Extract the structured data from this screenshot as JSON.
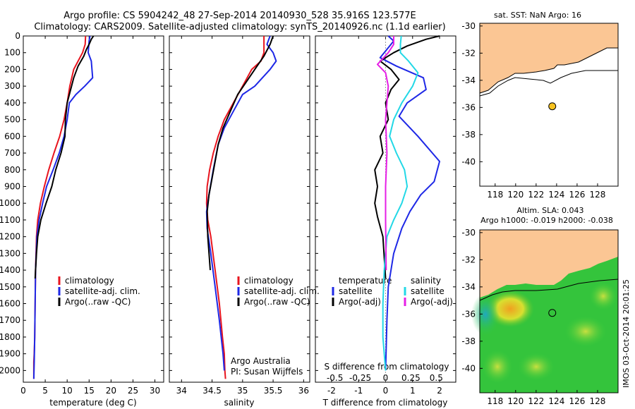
{
  "header": {
    "line1": "Argo profile: CS 5904242_48 27-Sep-2014 20140930_528 35.916S 123.577E",
    "line2": "Climatology: CARS2009. Satellite-adjusted climatology: synTS_20140926.nc (1.1d earlier)"
  },
  "colors": {
    "climatology": "#e8141e",
    "satellite": "#1e28e6",
    "argo": "#000000",
    "sat_salinity": "#22d8e6",
    "argo_salinity": "#e61ee6",
    "land": "#fbc694"
  },
  "chart_data": [
    {
      "id": "temperature",
      "type": "line",
      "xlabel": "temperature (deg C)",
      "ylabel": "",
      "xlim": [
        0,
        32
      ],
      "ylim": [
        2070,
        0
      ],
      "xticks": [
        0,
        5,
        10,
        15,
        20,
        25,
        30
      ],
      "yticks": [
        0,
        100,
        200,
        300,
        400,
        500,
        600,
        700,
        800,
        900,
        1000,
        1100,
        1200,
        1300,
        1400,
        1500,
        1600,
        1700,
        1800,
        1900,
        2000
      ],
      "legend": [
        "climatology",
        "satellite-adj. clim.",
        "Argo(..raw -QC)"
      ],
      "series": [
        {
          "name": "climatology",
          "color_key": "climatology",
          "x": [
            14.2,
            14.1,
            13.5,
            12.5,
            11.5,
            10.6,
            10.0,
            9.3,
            8.3,
            7.0,
            5.8,
            4.8,
            3.9,
            3.3,
            3.0,
            2.8,
            2.7,
            2.6,
            2.5,
            2.4,
            2.4,
            2.4
          ],
          "y": [
            0,
            50,
            100,
            150,
            200,
            300,
            400,
            500,
            600,
            700,
            800,
            900,
            1000,
            1100,
            1200,
            1400,
            1600,
            1800,
            1900,
            1950,
            2000,
            2050
          ]
        },
        {
          "name": "satellite-adj. clim.",
          "color_key": "satellite",
          "x": [
            15.2,
            15.0,
            14.8,
            15.5,
            15.8,
            14.0,
            12.0,
            10.5,
            10.0,
            9.3,
            8.2,
            6.8,
            5.3,
            4.4,
            3.6,
            3.1,
            2.8,
            2.7,
            2.6,
            2.5,
            2.4
          ],
          "y": [
            0,
            30,
            100,
            150,
            250,
            300,
            350,
            400,
            500,
            600,
            700,
            800,
            900,
            1000,
            1100,
            1200,
            1400,
            1600,
            1800,
            1950,
            2050
          ]
        },
        {
          "name": "Argo(..raw -QC)",
          "color_key": "argo",
          "x": [
            16.0,
            15.5,
            15.0,
            14.4,
            13.8,
            12.5,
            11.5,
            11.0,
            10.5,
            10.0,
            9.6,
            9.5,
            8.6,
            7.4,
            6.5,
            5.2,
            4.0,
            3.3,
            3.0,
            2.8,
            2.7
          ],
          "y": [
            0,
            20,
            50,
            80,
            120,
            180,
            250,
            300,
            350,
            400,
            500,
            600,
            700,
            800,
            900,
            1000,
            1100,
            1200,
            1300,
            1400,
            1450
          ]
        }
      ]
    },
    {
      "id": "salinity",
      "type": "line",
      "xlabel": "salinity",
      "ylabel": "",
      "xlim": [
        33.8,
        36.1
      ],
      "ylim": [
        2070,
        0
      ],
      "xticks": [
        34,
        34.5,
        35,
        35.5,
        36
      ],
      "legend": [
        "climatology",
        "satellite-adj. clim.",
        "Argo(..raw -QC)"
      ],
      "annotations": [
        "Argo Australia",
        "PI: Susan Wijffels"
      ],
      "series": [
        {
          "name": "climatology",
          "color_key": "climatology",
          "x": [
            35.35,
            35.35,
            35.3,
            35.15,
            35.0,
            34.85,
            34.7,
            34.6,
            34.52,
            34.46,
            34.42,
            34.41,
            34.43,
            34.48,
            34.55,
            34.62,
            34.67,
            34.7,
            34.71,
            34.72
          ],
          "y": [
            0,
            100,
            150,
            200,
            300,
            400,
            500,
            600,
            700,
            800,
            900,
            1000,
            1100,
            1200,
            1400,
            1600,
            1800,
            1900,
            2000,
            2050
          ]
        },
        {
          "name": "satellite-adj. clim.",
          "color_key": "satellite",
          "x": [
            35.45,
            35.4,
            35.5,
            35.55,
            35.45,
            35.2,
            35.0,
            34.85,
            34.7,
            34.6,
            34.52,
            34.45,
            34.41,
            34.42,
            34.48,
            34.55,
            34.62,
            34.68,
            34.7
          ],
          "y": [
            0,
            50,
            100,
            150,
            200,
            300,
            350,
            450,
            550,
            650,
            800,
            950,
            1050,
            1150,
            1300,
            1500,
            1700,
            1900,
            2000
          ]
        },
        {
          "name": "Argo(..raw -QC)",
          "color_key": "argo",
          "x": [
            35.5,
            35.45,
            35.35,
            35.2,
            35.05,
            34.92,
            34.8,
            34.68,
            34.6,
            34.55,
            34.5,
            34.45,
            34.42,
            34.43,
            34.47
          ],
          "y": [
            0,
            50,
            120,
            200,
            280,
            350,
            450,
            550,
            650,
            750,
            850,
            950,
            1050,
            1200,
            1400
          ]
        }
      ]
    },
    {
      "id": "difference",
      "type": "line",
      "xlabel": "T difference from climatology",
      "xlabel_top": "S difference from climatology",
      "xlim": [
        -2.6,
        2.6
      ],
      "ylim": [
        2070,
        0
      ],
      "xticks": [
        -2,
        -1,
        0,
        1,
        2
      ],
      "xticks_s": [
        "-0.5",
        "-0.25",
        "0",
        "0.25",
        "0.5"
      ],
      "legend_temperature": [
        "temperature",
        "satellite",
        "Argo(-adj)"
      ],
      "legend_salinity": [
        "salinity",
        "satellite",
        "Argo(-adj)"
      ],
      "series": [
        {
          "name": "T satellite",
          "color_key": "satellite",
          "x": [
            0.1,
            0.3,
            0.05,
            -0.2,
            0.4,
            1.4,
            1.5,
            0.8,
            0.5,
            1.2,
            2.0,
            1.8,
            1.3,
            0.9,
            0.6,
            0.3,
            0.1,
            0.05,
            0.0
          ],
          "y": [
            0,
            30,
            80,
            130,
            180,
            250,
            320,
            400,
            480,
            600,
            750,
            870,
            950,
            1050,
            1150,
            1300,
            1500,
            1700,
            2000
          ]
        },
        {
          "name": "T Argo",
          "color_key": "argo",
          "x": [
            2.0,
            1.5,
            0.8,
            0.3,
            -0.2,
            0.2,
            0.5,
            0.2,
            0.0,
            0.1,
            -0.2,
            -0.1,
            -0.4,
            -0.3,
            -0.4,
            -0.3,
            -0.1,
            0.0
          ],
          "y": [
            0,
            20,
            60,
            100,
            150,
            200,
            260,
            320,
            400,
            500,
            600,
            700,
            800,
            900,
            1000,
            1080,
            1200,
            1450
          ]
        },
        {
          "name": "S satellite",
          "color_key": "sat_salinity",
          "x": [
            0.58,
            0.55,
            0.55,
            0.85,
            1.2,
            1.0,
            0.6,
            0.3,
            0.15,
            0.4,
            0.7,
            0.8,
            0.6,
            0.3,
            0.05,
            -0.05,
            -0.1,
            -0.1,
            -0.05,
            0.0
          ],
          "y": [
            0,
            50,
            100,
            150,
            220,
            300,
            400,
            500,
            600,
            700,
            800,
            900,
            1000,
            1100,
            1200,
            1400,
            1600,
            1800,
            1900,
            2000
          ]
        },
        {
          "name": "S Argo",
          "color_key": "argo_salinity",
          "x": [
            0.3,
            0.3,
            0.1,
            -0.3,
            0.0,
            0.1,
            0.05,
            0.0,
            0.05,
            0.0,
            0.0,
            0.02
          ],
          "y": [
            0,
            50,
            100,
            170,
            220,
            300,
            400,
            500,
            700,
            900,
            1100,
            1400
          ]
        }
      ]
    }
  ],
  "map_top": {
    "title": "sat. SST: NaN Argo: 16",
    "lon_ticks": [
      118,
      120,
      122,
      124,
      126,
      128
    ],
    "lat_ticks": [
      -30,
      -32,
      -34,
      -36,
      -38,
      -40
    ],
    "lon_range": [
      116.5,
      130
    ],
    "lat_range": [
      -41.8,
      -29.8
    ],
    "argo_position": [
      123.577,
      -35.916
    ]
  },
  "map_bottom": {
    "title1": "Altim. SLA: 0.043",
    "title2": "Argo h1000: -0.019 h2000: -0.038",
    "lon_ticks": [
      118,
      120,
      122,
      124,
      126,
      128
    ],
    "lat_ticks": [
      -30,
      -32,
      -34,
      -36,
      -38,
      -40
    ],
    "lon_range": [
      116.5,
      130
    ],
    "lat_range": [
      -41.8,
      -29.8
    ],
    "argo_position": [
      123.577,
      -35.916
    ]
  },
  "stamp": "IMOS 03-Oct-2014 20:01:25"
}
